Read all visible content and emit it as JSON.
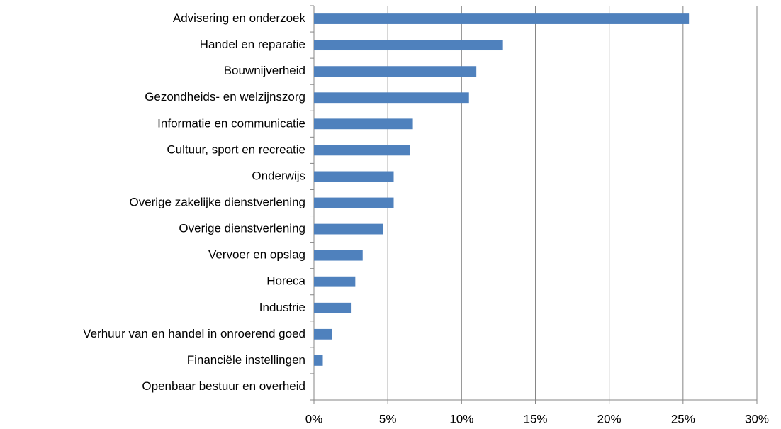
{
  "chart_data": {
    "type": "bar",
    "orientation": "horizontal",
    "categories": [
      "Advisering en onderzoek",
      "Handel en reparatie",
      "Bouwnijverheid",
      "Gezondheids- en welzijnszorg",
      "Informatie en communicatie",
      "Cultuur, sport en recreatie",
      "Onderwijs",
      "Overige zakelijke dienstverlening",
      "Overige dienstverlening",
      "Vervoer en opslag",
      "Horeca",
      "Industrie",
      "Verhuur van en handel in onroerend goed",
      "Financiële instellingen",
      "Openbaar bestuur en overheid"
    ],
    "values": [
      25.4,
      12.8,
      11.0,
      10.5,
      6.7,
      6.5,
      5.4,
      5.4,
      4.7,
      3.3,
      2.8,
      2.5,
      1.2,
      0.6,
      0
    ],
    "color": "#4f81bd",
    "xlim": [
      0,
      30
    ],
    "xticks": [
      {
        "value": 0,
        "label": "0%"
      },
      {
        "value": 5,
        "label": "5%"
      },
      {
        "value": 10,
        "label": "10%"
      },
      {
        "value": 15,
        "label": "15%"
      },
      {
        "value": 20,
        "label": "20%"
      },
      {
        "value": 25,
        "label": "25%"
      },
      {
        "value": 30,
        "label": "30%"
      }
    ],
    "grid": true
  }
}
